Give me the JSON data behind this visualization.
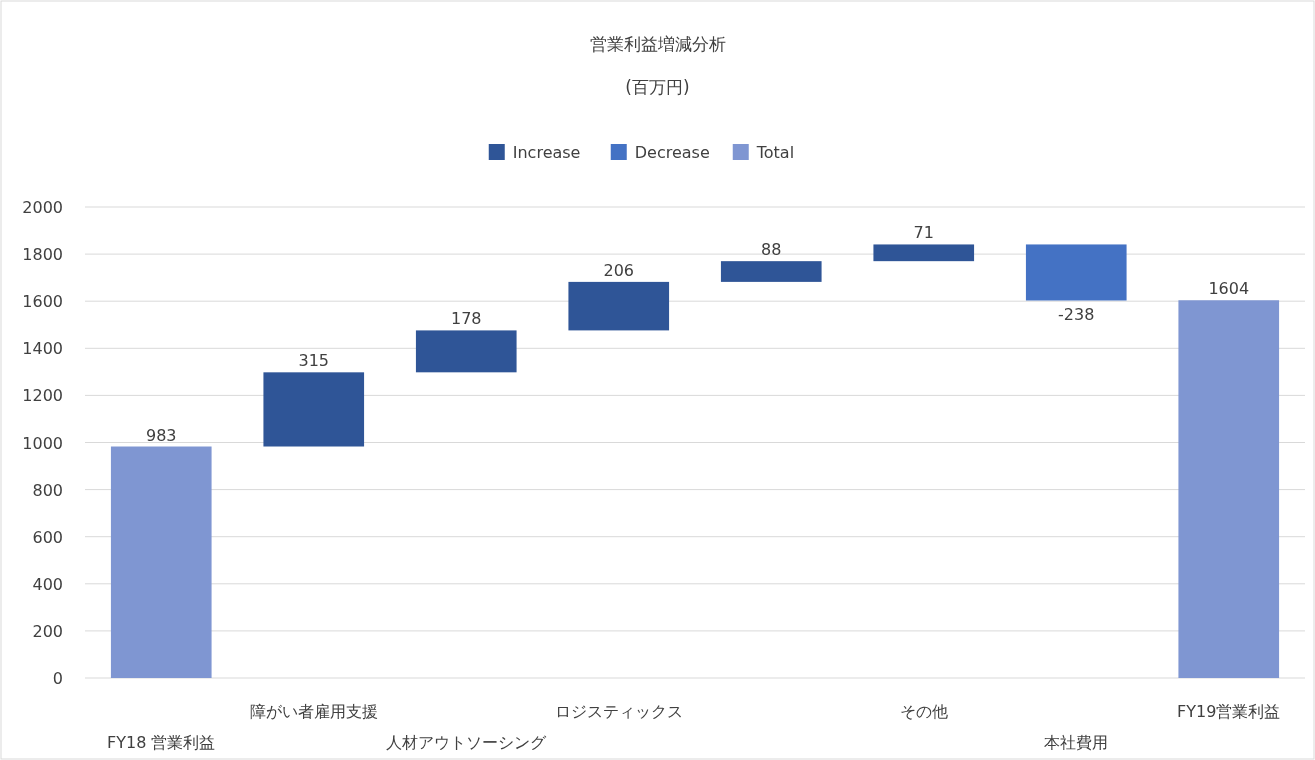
{
  "chart_data": {
    "type": "bar",
    "title": "営業利益増減分析",
    "subtitle": "(百万円)",
    "categories": [
      "FY18 営業利益",
      "障がい者雇用支援",
      "人材アウトソーシング",
      "ロジスティックス",
      null,
      "その他",
      "本社費用",
      "FY19営業利益"
    ],
    "series": [
      {
        "name": "Increase",
        "color": "#2f5597",
        "values": [
          null,
          315,
          178,
          206,
          88,
          71,
          null,
          null
        ],
        "base": [
          null,
          983,
          1298,
          1476,
          1682,
          1770,
          null,
          null
        ]
      },
      {
        "name": "Decrease",
        "color": "#4472c4",
        "values": [
          null,
          null,
          null,
          null,
          null,
          null,
          -238,
          null
        ],
        "base": [
          null,
          null,
          null,
          null,
          null,
          null,
          1841,
          null
        ]
      },
      {
        "name": "Total",
        "color": "#7f96d2",
        "values": [
          983,
          null,
          null,
          null,
          null,
          null,
          null,
          1604
        ],
        "base": [
          0,
          null,
          null,
          null,
          null,
          null,
          null,
          0
        ]
      }
    ],
    "ylim": [
      0,
      2000
    ],
    "yticks": [
      0,
      200,
      400,
      600,
      800,
      1000,
      1200,
      1400,
      1600,
      1800,
      2000
    ],
    "grid": "y",
    "legend": "top",
    "data_labels": true
  }
}
